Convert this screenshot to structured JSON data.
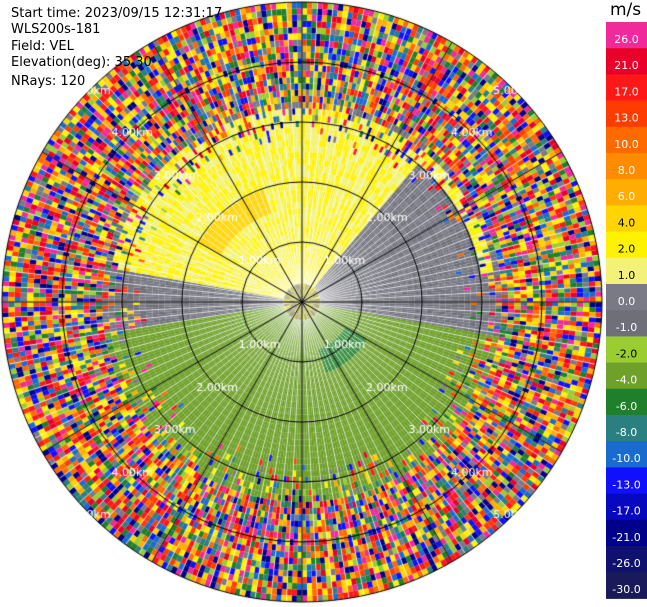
{
  "header": {
    "start_time": "Start time: 2023/09/15 12:31:17",
    "station": "WLS200s-181",
    "field": "Field: VEL",
    "elevation": "Elevation(deg): 35.30",
    "nrays": "NRays: 120"
  },
  "colorbar": {
    "unit": "m/s",
    "levels": [
      {
        "label": "26.0",
        "color": "#f02a9a"
      },
      {
        "label": "21.0",
        "color": "#e8002a"
      },
      {
        "label": "17.0",
        "color": "#ff1818"
      },
      {
        "label": "13.0",
        "color": "#ff3c00"
      },
      {
        "label": "10.0",
        "color": "#ff6a00"
      },
      {
        "label": "8.0",
        "color": "#ff8c00"
      },
      {
        "label": "6.0",
        "color": "#ffae00"
      },
      {
        "label": "4.0",
        "color": "#ffd400"
      },
      {
        "label": "2.0",
        "color": "#fff200"
      },
      {
        "label": "1.0",
        "color": "#f2f27a"
      },
      {
        "label": "0.0",
        "color": "#7a7a86"
      },
      {
        "label": "-1.0",
        "color": "#6f6f79"
      },
      {
        "label": "-2.0",
        "color": "#9acd32"
      },
      {
        "label": "-4.0",
        "color": "#6fa02a"
      },
      {
        "label": "-6.0",
        "color": "#1f7f2a"
      },
      {
        "label": "-8.0",
        "color": "#2a8080"
      },
      {
        "label": "-10.0",
        "color": "#1a6bd0"
      },
      {
        "label": "-13.0",
        "color": "#1010ff"
      },
      {
        "label": "-17.0",
        "color": "#0808c0"
      },
      {
        "label": "-21.0",
        "color": "#00008b"
      },
      {
        "label": "-26.0",
        "color": "#10106e"
      },
      {
        "label": "-30.0",
        "color": "#1a1a5a"
      }
    ]
  },
  "chart_data": {
    "type": "heatmap",
    "title": "",
    "subtitle": "",
    "field": "VEL",
    "units": "m/s",
    "range_rings_km": [
      1.0,
      2.0,
      3.0,
      4.0,
      5.0
    ],
    "ring_labels": [
      "1.00km",
      "2.00km",
      "3.00km",
      "4.00km",
      "5.00km"
    ],
    "spoke_angles_deg": [
      0,
      30,
      60,
      90,
      120,
      150,
      180,
      210,
      240,
      270,
      300,
      330
    ],
    "nrays": 120,
    "elevation_deg": 35.3,
    "max_range_km": 5.0,
    "regions": [
      {
        "name": "positive-north",
        "azimuth_range_deg": [
          280,
          80
        ],
        "range_km": [
          0.3,
          3.2
        ],
        "value_ms": 2.0
      },
      {
        "name": "orange-patch",
        "azimuth_range_deg": [
          300,
          340
        ],
        "range_km": [
          1.6,
          2.0
        ],
        "value_ms": 5.0
      },
      {
        "name": "near-zero-east",
        "azimuth_range_deg": [
          40,
          130
        ],
        "range_km": [
          0.3,
          3.0
        ],
        "value_ms": 0.0
      },
      {
        "name": "negative-south",
        "azimuth_range_deg": [
          100,
          260
        ],
        "range_km": [
          0.3,
          3.3
        ],
        "value_ms": -2.5
      },
      {
        "name": "dark-green-patch",
        "azimuth_range_deg": [
          120,
          160
        ],
        "range_km": [
          0.8,
          1.3
        ],
        "value_ms": -5.0
      },
      {
        "name": "noise-outer",
        "azimuth_range_deg": [
          0,
          360
        ],
        "range_km": [
          3.3,
          5.0
        ],
        "value_ms": null
      }
    ]
  }
}
